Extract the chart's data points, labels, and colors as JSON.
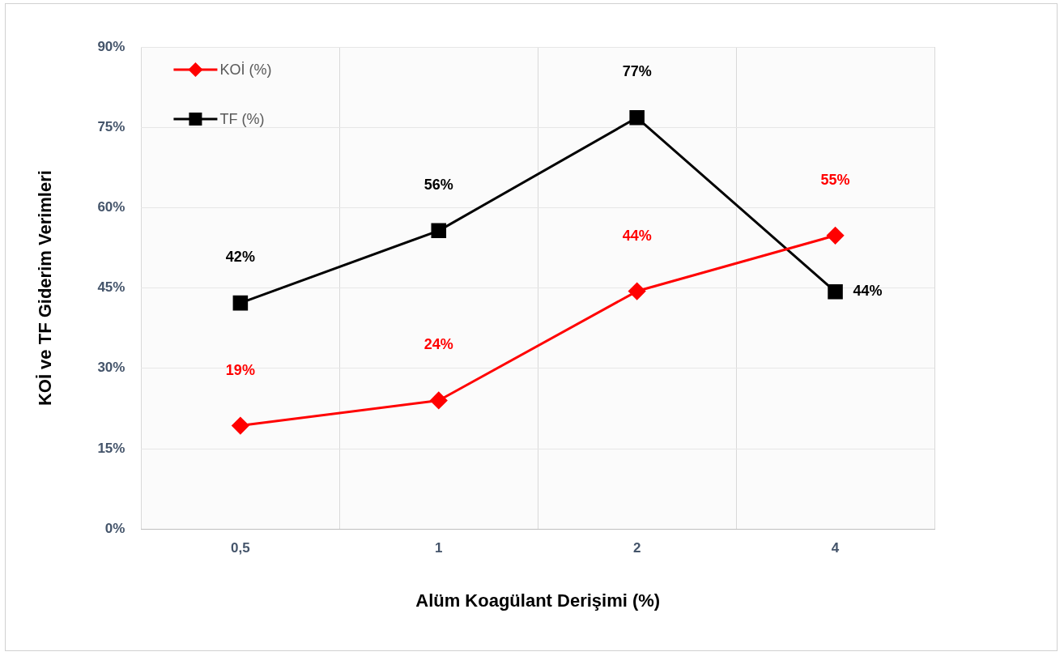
{
  "chart_data": {
    "type": "line",
    "xlabel": "Alüm Koagülant Derişimi (%)",
    "ylabel": "KOİ ve TF Giderim Verimleri",
    "categories": [
      "0,5",
      "1",
      "2",
      "4"
    ],
    "series": [
      {
        "name": "KOİ (%)",
        "color": "#ff0000",
        "marker": "diamond",
        "values": [
          19.3,
          24,
          44.4,
          54.8
        ],
        "value_labels": [
          "19%",
          "24%",
          "44%",
          "55%"
        ]
      },
      {
        "name": "TF (%)",
        "color": "#000000",
        "marker": "square",
        "values": [
          42.2,
          55.7,
          76.8,
          44.3
        ],
        "value_labels": [
          "42%",
          "56%",
          "77%",
          "44%"
        ]
      }
    ],
    "ylim": [
      0,
      90
    ],
    "yticks": [
      {
        "value": 0,
        "label": "0%"
      },
      {
        "value": 15,
        "label": "15%"
      },
      {
        "value": 30,
        "label": "30%"
      },
      {
        "value": 45,
        "label": "45%"
      },
      {
        "value": 60,
        "label": "60%"
      },
      {
        "value": 75,
        "label": "75%"
      },
      {
        "value": 90,
        "label": "90%"
      }
    ],
    "grid": true,
    "legend": "top left"
  }
}
